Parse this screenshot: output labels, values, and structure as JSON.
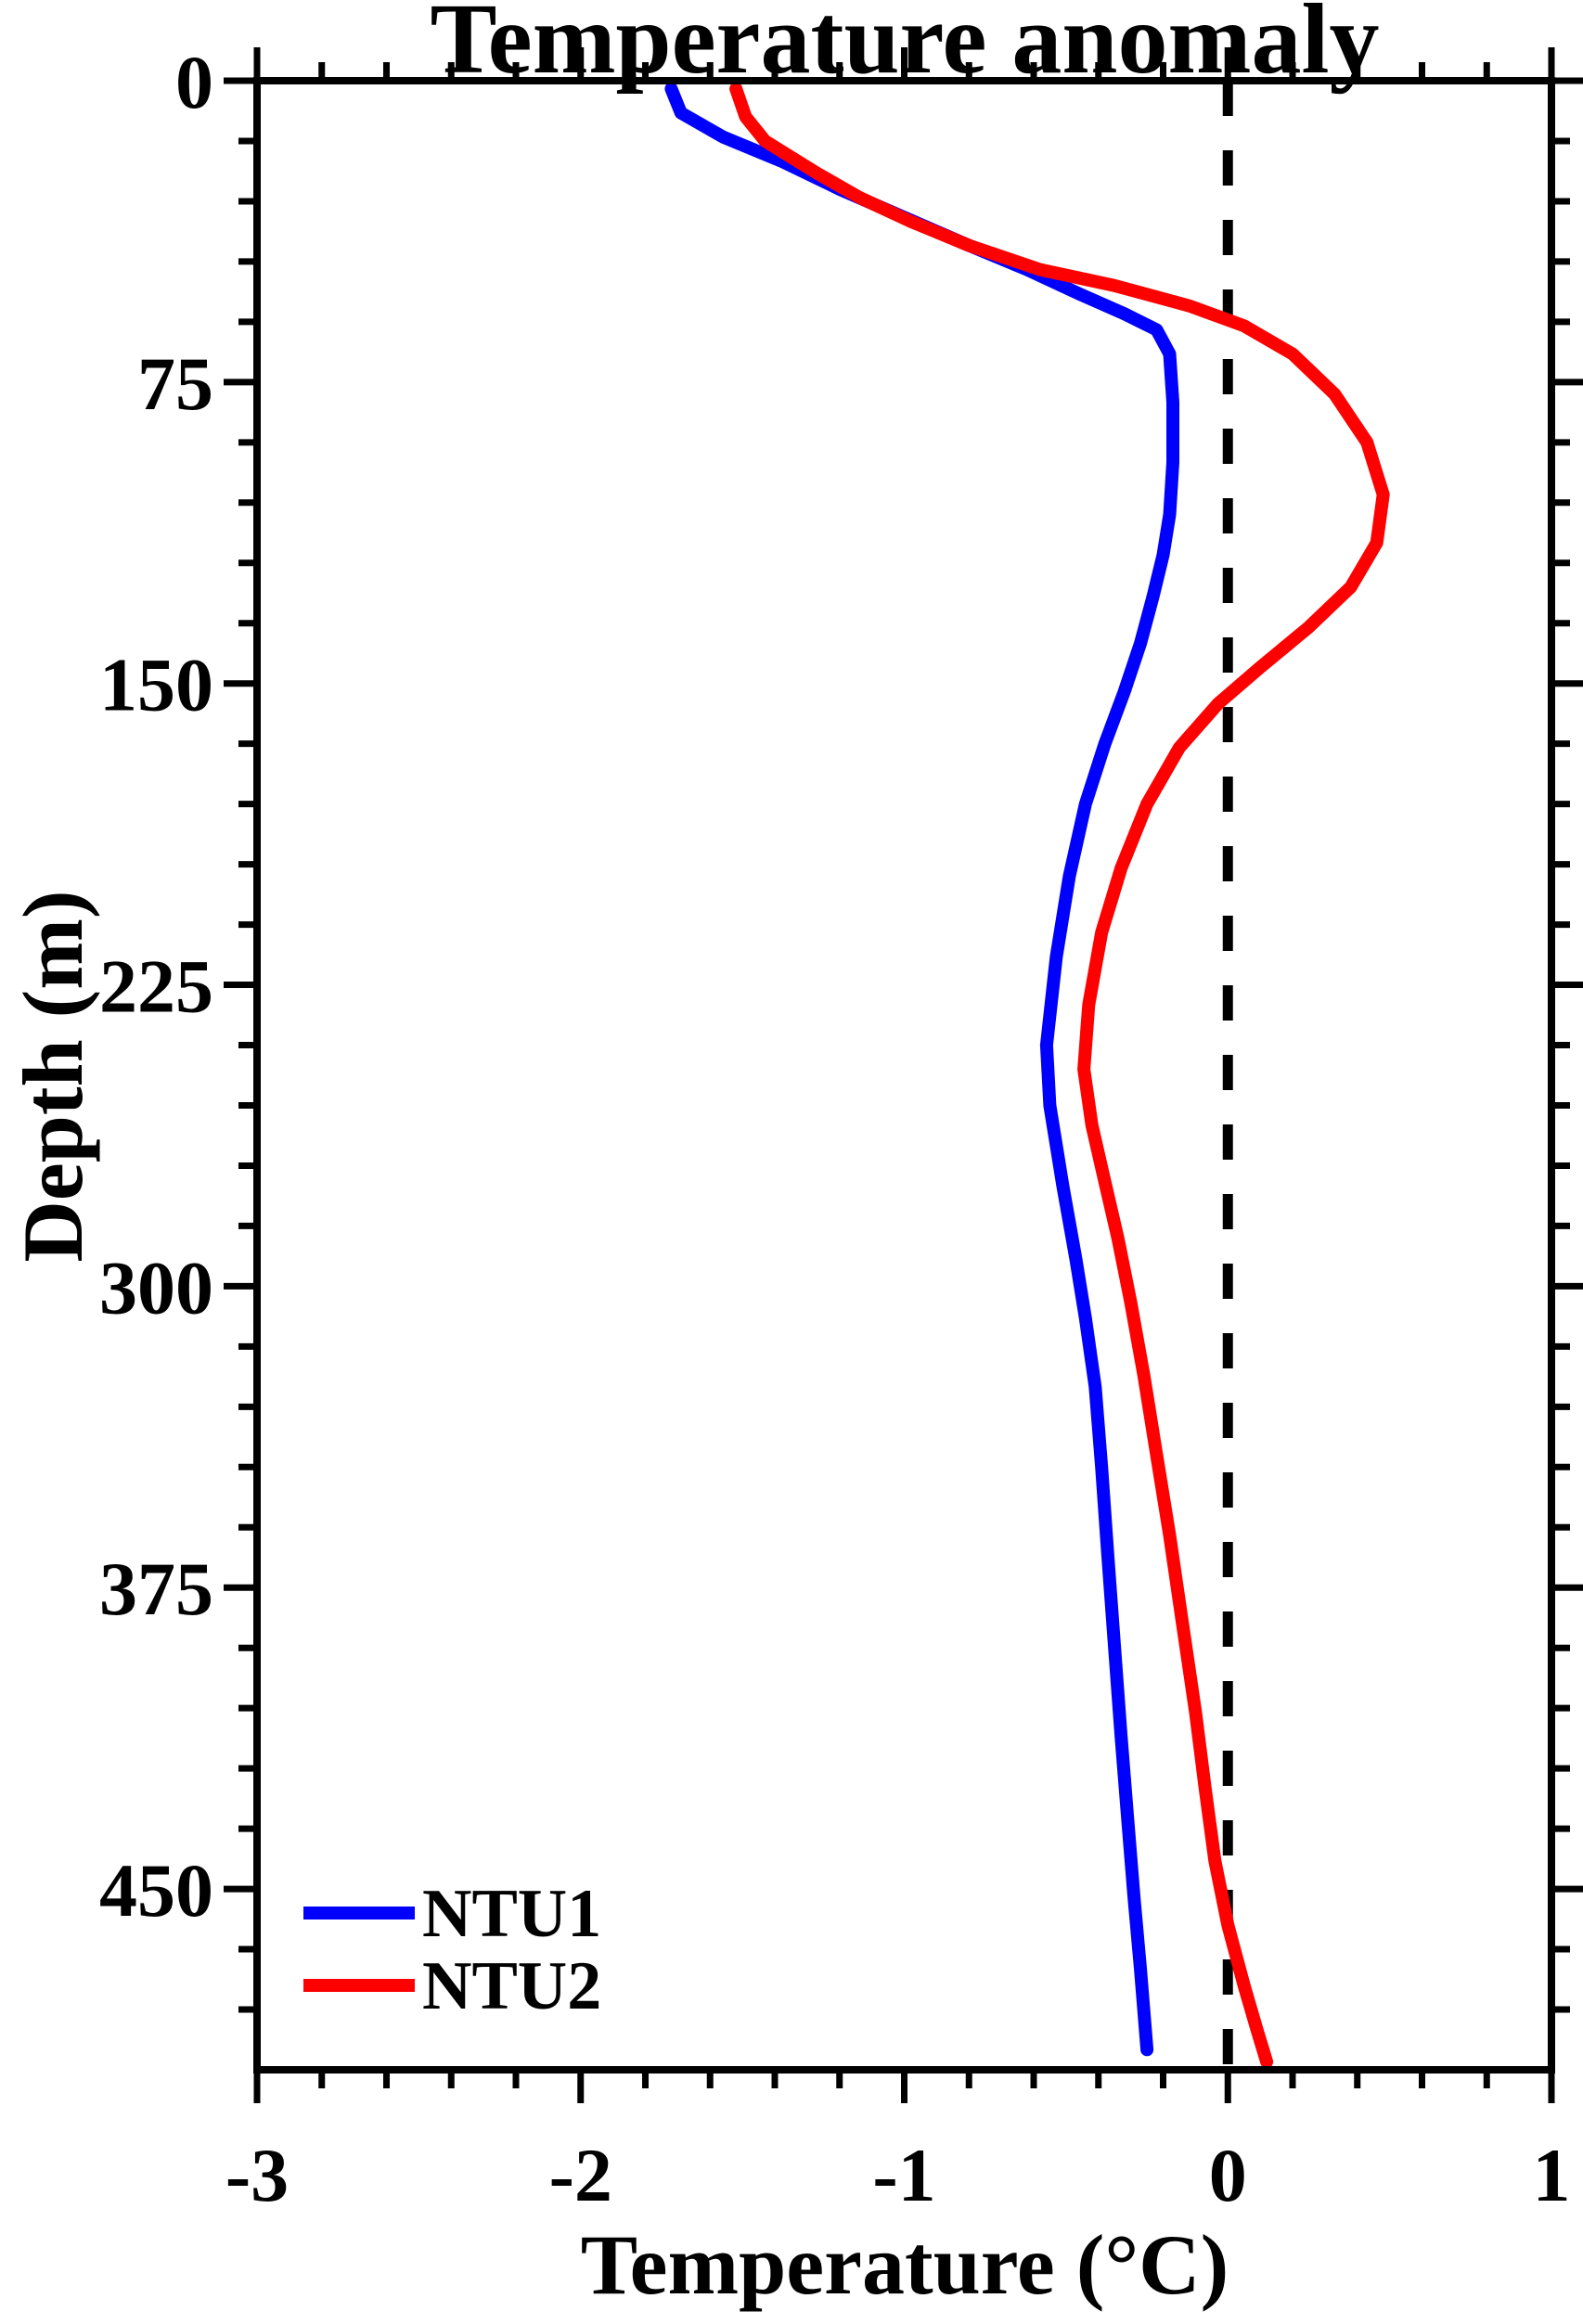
{
  "figure": {
    "title": "Temperature anomaly",
    "background": "#ffffff",
    "axis_color": "#000000"
  },
  "chart_data": {
    "type": "line",
    "title": "Temperature anomaly",
    "xlabel": "Temperature (°C)",
    "ylabel": "Depth (m)",
    "xlim": [
      -3,
      1
    ],
    "ylim": [
      0,
      495
    ],
    "y_axis_inverted": true,
    "orientation": "profile-depth-down",
    "grid": false,
    "x_ticks": [
      -3,
      -2,
      -1,
      0,
      1
    ],
    "y_ticks": [
      0,
      75,
      150,
      225,
      300,
      375,
      450
    ],
    "x_minor_step": 0.2,
    "y_minor_step": 15,
    "reference_line": {
      "x": 0,
      "style": "dashed",
      "color": "#000000"
    },
    "legend_position": "inside-bottom-left",
    "series": [
      {
        "name": "NTU1",
        "color": "#0000ff",
        "points": [
          [
            -1.72,
            2
          ],
          [
            -1.69,
            8
          ],
          [
            -1.56,
            14
          ],
          [
            -1.38,
            20
          ],
          [
            -1.2,
            27
          ],
          [
            -1.0,
            34
          ],
          [
            -0.8,
            41
          ],
          [
            -0.62,
            47
          ],
          [
            -0.46,
            53
          ],
          [
            -0.32,
            58
          ],
          [
            -0.22,
            62
          ],
          [
            -0.18,
            68
          ],
          [
            -0.17,
            80
          ],
          [
            -0.17,
            95
          ],
          [
            -0.18,
            108
          ],
          [
            -0.2,
            118
          ],
          [
            -0.23,
            128
          ],
          [
            -0.27,
            140
          ],
          [
            -0.32,
            152
          ],
          [
            -0.38,
            165
          ],
          [
            -0.44,
            180
          ],
          [
            -0.49,
            198
          ],
          [
            -0.53,
            218
          ],
          [
            -0.56,
            240
          ],
          [
            -0.55,
            255
          ],
          [
            -0.51,
            275
          ],
          [
            -0.47,
            293
          ],
          [
            -0.44,
            308
          ],
          [
            -0.41,
            325
          ],
          [
            -0.39,
            345
          ],
          [
            -0.37,
            368
          ],
          [
            -0.35,
            390
          ],
          [
            -0.33,
            412
          ],
          [
            -0.31,
            432
          ],
          [
            -0.29,
            452
          ],
          [
            -0.27,
            470
          ],
          [
            -0.25,
            490
          ]
        ]
      },
      {
        "name": "NTU2",
        "color": "#ff0000",
        "points": [
          [
            -1.52,
            2
          ],
          [
            -1.49,
            9
          ],
          [
            -1.43,
            15
          ],
          [
            -1.35,
            19
          ],
          [
            -1.27,
            23
          ],
          [
            -1.14,
            29
          ],
          [
            -0.98,
            35
          ],
          [
            -0.8,
            41
          ],
          [
            -0.58,
            47
          ],
          [
            -0.35,
            51
          ],
          [
            -0.12,
            56
          ],
          [
            0.05,
            61
          ],
          [
            0.2,
            68
          ],
          [
            0.33,
            78
          ],
          [
            0.43,
            90
          ],
          [
            0.48,
            103
          ],
          [
            0.46,
            115
          ],
          [
            0.38,
            126
          ],
          [
            0.25,
            136
          ],
          [
            0.1,
            146
          ],
          [
            -0.03,
            155
          ],
          [
            -0.15,
            166
          ],
          [
            -0.25,
            180
          ],
          [
            -0.33,
            196
          ],
          [
            -0.39,
            212
          ],
          [
            -0.43,
            230
          ],
          [
            -0.445,
            246
          ],
          [
            -0.42,
            260
          ],
          [
            -0.38,
            274
          ],
          [
            -0.34,
            288
          ],
          [
            -0.3,
            304
          ],
          [
            -0.26,
            322
          ],
          [
            -0.22,
            342
          ],
          [
            -0.18,
            362
          ],
          [
            -0.14,
            384
          ],
          [
            -0.1,
            406
          ],
          [
            -0.07,
            425
          ],
          [
            -0.04,
            443
          ],
          [
            0.0,
            459
          ],
          [
            0.05,
            474
          ],
          [
            0.09,
            485
          ],
          [
            0.12,
            493
          ]
        ]
      }
    ]
  }
}
